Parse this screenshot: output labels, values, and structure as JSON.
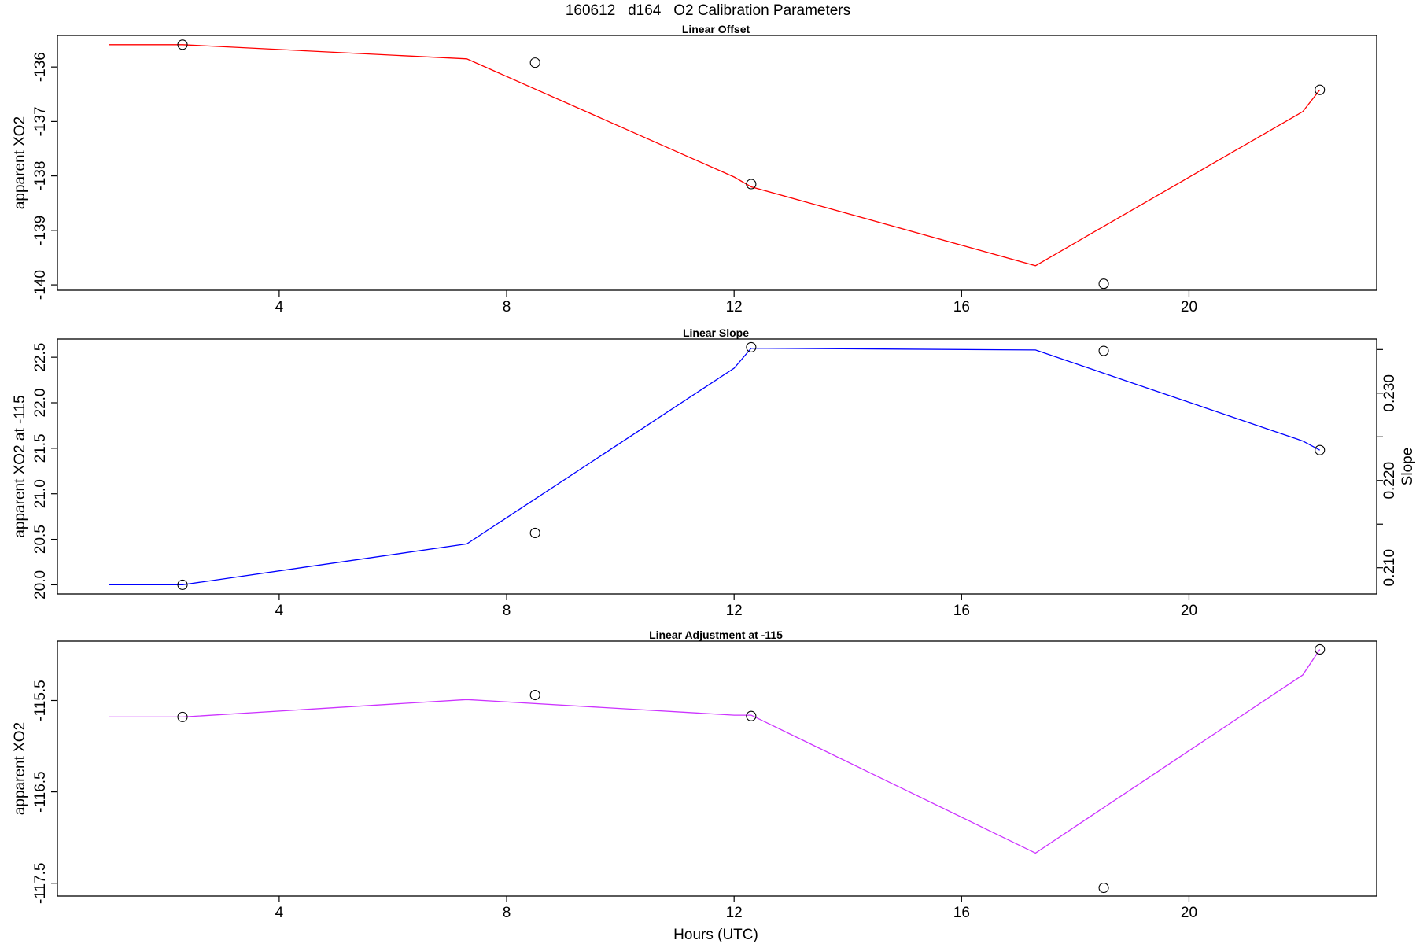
{
  "figure_title": "160612   d164   O2 Calibration Parameters",
  "xlabel": "Hours (UTC)",
  "chart_data": [
    {
      "type": "line",
      "title": "Linear Offset",
      "xlabel": "",
      "ylabel": "apparent XO2",
      "xlim": [
        0.1,
        23.3
      ],
      "ylim": [
        -140.1,
        -135.42
      ],
      "xticks": [
        "4",
        "8",
        "12",
        "16",
        "20"
      ],
      "yticks": [
        "-136",
        "-137",
        "-138",
        "-139",
        "-140"
      ],
      "line_color": "#ff0000",
      "series": [
        {
          "x": [
            1.0,
            2.3,
            7.3,
            12.0,
            12.3,
            17.3,
            22.0,
            22.3
          ],
          "y": [
            -135.59,
            -135.59,
            -135.85,
            -138.02,
            -138.2,
            -139.65,
            -136.82,
            -136.42
          ]
        }
      ],
      "points": {
        "x": [
          2.3,
          8.5,
          12.3,
          18.5,
          22.3
        ],
        "y": [
          -135.59,
          -135.92,
          -138.15,
          -139.98,
          -136.42
        ]
      }
    },
    {
      "type": "line",
      "title": "Linear Slope",
      "xlabel": "",
      "ylabel": "apparent XO2 at -115",
      "ylabel_right": "Slope",
      "xlim": [
        0.1,
        23.3
      ],
      "ylim": [
        19.9,
        22.7
      ],
      "y2lim": [
        0.207,
        0.2362
      ],
      "xticks": [
        "4",
        "8",
        "12",
        "16",
        "20"
      ],
      "yticks": [
        "20.0",
        "20.5",
        "21.0",
        "21.5",
        "22.0",
        "22.5"
      ],
      "y2ticks": [
        "0.210",
        "0.220",
        "0.230"
      ],
      "line_color": "#0000ff",
      "series": [
        {
          "x": [
            1.0,
            2.3,
            7.3,
            12.0,
            12.3,
            17.3,
            22.0,
            22.3
          ],
          "y": [
            20.0,
            20.0,
            20.45,
            22.38,
            22.6,
            22.58,
            21.58,
            21.48
          ]
        }
      ],
      "points": {
        "x": [
          2.3,
          8.5,
          12.3,
          18.5,
          22.3
        ],
        "y": [
          20.0,
          20.57,
          22.61,
          22.57,
          21.48
        ]
      }
    },
    {
      "type": "line",
      "title": "Linear Adjustment at -115",
      "xlabel": "Hours (UTC)",
      "ylabel": "apparent XO2",
      "xlim": [
        0.1,
        23.3
      ],
      "ylim": [
        -117.64,
        -114.85
      ],
      "xticks": [
        "4",
        "8",
        "12",
        "16",
        "20"
      ],
      "yticks": [
        "-115.5",
        "-116.5",
        "-117.5"
      ],
      "line_color": "#cc33ff",
      "series": [
        {
          "x": [
            1.0,
            2.3,
            7.3,
            12.0,
            12.3,
            17.3,
            22.0,
            22.3
          ],
          "y": [
            -115.68,
            -115.68,
            -115.49,
            -115.66,
            -115.66,
            -117.17,
            -115.22,
            -114.94
          ]
        }
      ],
      "points": {
        "x": [
          2.3,
          8.5,
          12.3,
          18.5,
          22.3
        ],
        "y": [
          -115.68,
          -115.44,
          -115.67,
          -117.55,
          -114.94
        ]
      }
    }
  ]
}
